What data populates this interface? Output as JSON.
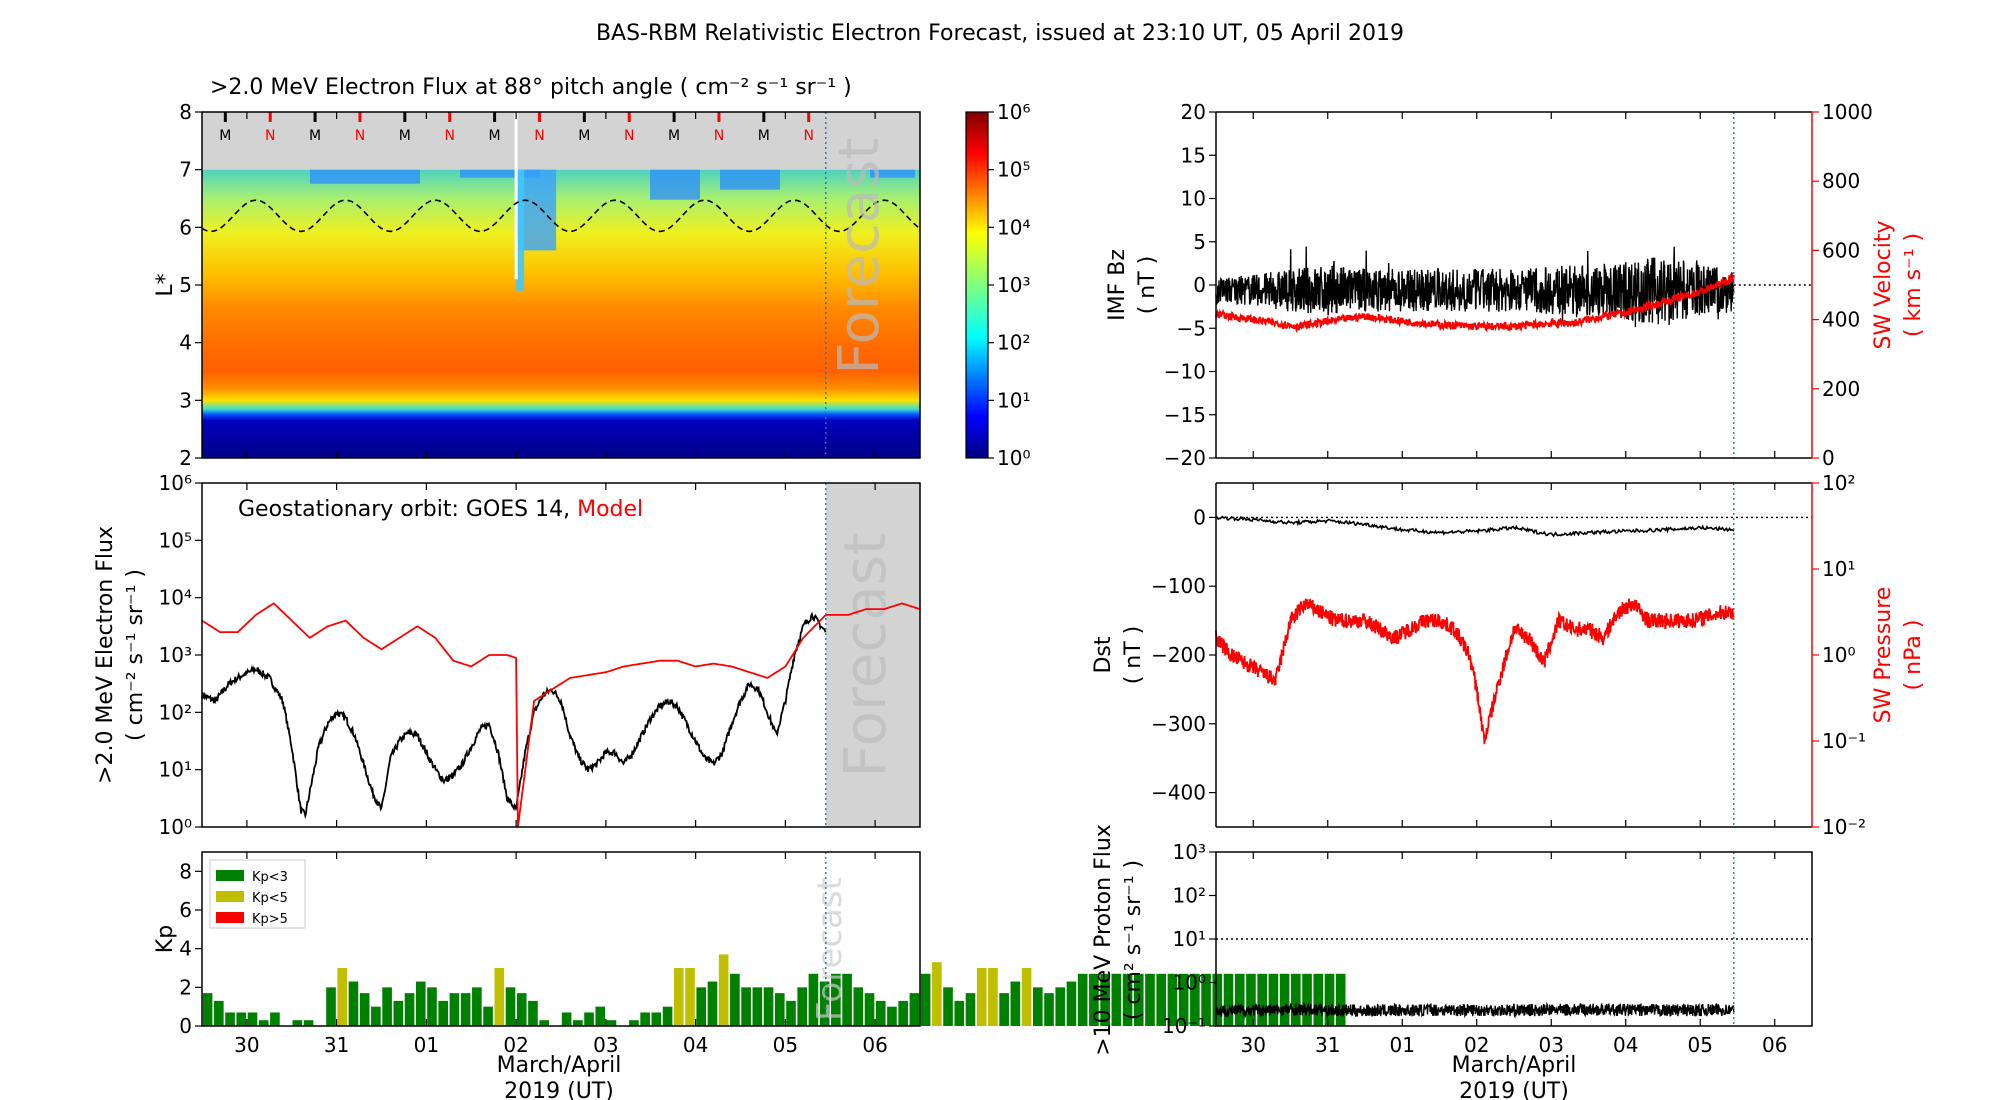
{
  "title": "BAS-RBM Relativistic Electron Forecast, issued at 23:10 UT, 05 April 2019",
  "x_axis": {
    "ticks": [
      "30",
      "31",
      "01",
      "02",
      "03",
      "04",
      "05",
      "06"
    ],
    "label_line1": "March/April",
    "label_line2": "2019 (UT)"
  },
  "colors": {
    "forecast_line": "#1f77b4",
    "kp_low": "#008000",
    "kp_mid": "#bfbf00",
    "kp_high": "#ff0000",
    "model": "#ff0000",
    "obs": "#000000"
  },
  "chart_data": [
    {
      "id": "lstar_flux_map",
      "type": "heatmap",
      "title": ">2.0 MeV Electron Flux at 88° pitch angle ( cm⁻² s⁻¹ sr⁻¹ )",
      "ylabel": "L*",
      "yticks": [
        "2",
        "3",
        "4",
        "5",
        "6",
        "7",
        "8"
      ],
      "ylim": [
        2,
        8
      ],
      "xlim_days": [
        -0.5,
        7.5
      ],
      "forecast_start_day": 6.45,
      "forecast_watermark": "Forecast",
      "colorbar": {
        "scale": "log",
        "ticks": [
          "10⁰",
          "10¹",
          "10²",
          "10³",
          "10⁴",
          "10⁵",
          "10⁶"
        ],
        "range": [
          0,
          6
        ]
      },
      "noon_midnight_markers": [
        "M",
        "N",
        "M",
        "N",
        "M",
        "N",
        "M",
        "N",
        "M",
        "N",
        "M",
        "N",
        "M",
        "N"
      ],
      "mlt_dashed_line": {
        "mean_L": 6.2,
        "amplitude": 0.27,
        "period_days": 1
      },
      "injection_day": 3.0
    },
    {
      "id": "geo_electron_flux",
      "type": "line",
      "annotation_prefix": "Geostationary orbit:   GOES 14,",
      "annotation_model": "Model",
      "ylabel_line1": ">2.0 MeV Electron Flux",
      "ylabel_line2": "( cm⁻² s⁻¹ sr⁻¹ )",
      "yscale": "log",
      "yticks": [
        "10⁰",
        "10¹",
        "10²",
        "10³",
        "10⁴",
        "10⁵",
        "10⁶"
      ],
      "ylim_log": [
        0,
        6
      ],
      "forecast_watermark": "Forecast",
      "series": [
        {
          "name": "GOES 14",
          "color": "#000000",
          "x": [
            -0.5,
            -0.35,
            -0.2,
            -0.05,
            0.1,
            0.25,
            0.4,
            0.5,
            0.6,
            0.65,
            0.7,
            0.8,
            0.9,
            1.0,
            1.1,
            1.2,
            1.3,
            1.4,
            1.5,
            1.6,
            1.7,
            1.8,
            1.9,
            2.0,
            2.1,
            2.2,
            2.3,
            2.4,
            2.5,
            2.6,
            2.7,
            2.8,
            2.9,
            3.0,
            3.1,
            3.2,
            3.3,
            3.4,
            3.5,
            3.6,
            3.7,
            3.8,
            3.9,
            4.0,
            4.1,
            4.2,
            4.3,
            4.4,
            4.5,
            4.6,
            4.7,
            4.8,
            4.9,
            5.0,
            5.1,
            5.2,
            5.3,
            5.4,
            5.5,
            5.6,
            5.7,
            5.8,
            5.9,
            6.0,
            6.1,
            6.2,
            6.3,
            6.45
          ],
          "log_y": [
            2.3,
            2.2,
            2.5,
            2.65,
            2.75,
            2.6,
            2.2,
            1.4,
            0.3,
            0.2,
            0.6,
            1.4,
            1.8,
            2.0,
            1.9,
            1.6,
            1.1,
            0.6,
            0.3,
            1.2,
            1.5,
            1.65,
            1.6,
            1.3,
            1.0,
            0.8,
            0.9,
            1.1,
            1.4,
            1.7,
            1.8,
            1.3,
            0.5,
            0.3,
            1.3,
            2.0,
            2.3,
            2.4,
            2.2,
            1.6,
            1.2,
            1.0,
            1.1,
            1.3,
            1.3,
            1.1,
            1.3,
            1.6,
            1.9,
            2.1,
            2.2,
            2.1,
            1.8,
            1.5,
            1.2,
            1.1,
            1.3,
            1.8,
            2.2,
            2.5,
            2.4,
            2.0,
            1.6,
            2.2,
            3.0,
            3.5,
            3.7,
            3.4
          ]
        },
        {
          "name": "Model",
          "color": "#ff0000",
          "x": [
            -0.5,
            -0.3,
            -0.1,
            0.1,
            0.3,
            0.5,
            0.7,
            0.9,
            1.1,
            1.3,
            1.5,
            1.7,
            1.9,
            2.1,
            2.3,
            2.5,
            2.7,
            2.9,
            3.0,
            3.02,
            3.2,
            3.4,
            3.6,
            3.8,
            4.0,
            4.2,
            4.4,
            4.6,
            4.8,
            5.0,
            5.2,
            5.4,
            5.6,
            5.8,
            6.0,
            6.2,
            6.45,
            6.7,
            6.9,
            7.1,
            7.3,
            7.5
          ],
          "log_y": [
            3.6,
            3.4,
            3.4,
            3.7,
            3.9,
            3.6,
            3.3,
            3.5,
            3.6,
            3.3,
            3.1,
            3.3,
            3.5,
            3.3,
            2.9,
            2.8,
            3.0,
            3.0,
            2.95,
            0.0,
            2.2,
            2.4,
            2.6,
            2.65,
            2.7,
            2.8,
            2.85,
            2.9,
            2.9,
            2.8,
            2.85,
            2.8,
            2.7,
            2.6,
            2.8,
            3.3,
            3.7,
            3.7,
            3.8,
            3.8,
            3.9,
            3.8
          ]
        }
      ]
    },
    {
      "id": "kp_index",
      "type": "bar",
      "ylabel": "Kp",
      "yticks": [
        "0",
        "2",
        "4",
        "6",
        "8"
      ],
      "ylim": [
        0,
        9
      ],
      "bar_width_days": 0.125,
      "forecast_watermark": "Forecast",
      "legend": [
        {
          "label": "Kp<3",
          "color": "#008000"
        },
        {
          "label": "Kp<5",
          "color": "#bfbf00"
        },
        {
          "label": "Kp>5",
          "color": "#ff0000"
        }
      ],
      "values": [
        1.7,
        1.3,
        0.7,
        0.7,
        0.7,
        0.3,
        0.7,
        0.0,
        0.3,
        0.3,
        0.0,
        2.0,
        3.0,
        2.3,
        1.7,
        1.0,
        2.0,
        1.3,
        1.7,
        2.3,
        2.0,
        1.3,
        1.7,
        1.7,
        2.0,
        1.0,
        3.0,
        2.0,
        1.7,
        1.3,
        0.3,
        0.0,
        0.7,
        0.3,
        0.7,
        1.0,
        0.3,
        0.0,
        0.3,
        0.7,
        0.7,
        1.0,
        3.0,
        3.0,
        2.0,
        2.3,
        3.7,
        2.7,
        2.0,
        2.0,
        2.0,
        1.7,
        1.3,
        2.0,
        2.7,
        2.3,
        2.7,
        2.7,
        2.0,
        1.7,
        1.3,
        1.0,
        1.3,
        1.7,
        2.7,
        3.3,
        2.0,
        1.3,
        1.7,
        3.0,
        3.0,
        1.7,
        2.3,
        3.0,
        2.0,
        1.7,
        2.0,
        2.3,
        2.7,
        2.7,
        2.7,
        2.7,
        2.7,
        2.7,
        2.7,
        2.7,
        2.7,
        2.7,
        2.7,
        2.7,
        2.7,
        2.7,
        2.7,
        2.7,
        2.7,
        2.7,
        2.7,
        2.7,
        2.7,
        2.7,
        2.7,
        2.7
      ]
    },
    {
      "id": "imf_sw_velocity",
      "type": "line",
      "ylabel_left_line1": "IMF Bz",
      "ylabel_left_line2": "( nT )",
      "yticks_left": [
        "−20",
        "−15",
        "−10",
        "−5",
        "0",
        "5",
        "10",
        "15",
        "20"
      ],
      "ylim_left": [
        -20,
        20
      ],
      "ylabel_right_line1": "SW Velocity",
      "ylabel_right_line2": "( km s⁻¹ )",
      "yticks_right": [
        "0",
        "200",
        "400",
        "600",
        "800",
        "1000"
      ],
      "ylim_right": [
        0,
        1000
      ],
      "series": [
        {
          "name": "IMF Bz",
          "color": "#000000",
          "x": [
            -0.5,
            0.0,
            0.5,
            1.0,
            1.5,
            2.0,
            2.5,
            3.0,
            3.5,
            4.0,
            4.5,
            5.0,
            5.5,
            6.0,
            6.45
          ],
          "amplitude": [
            1.5,
            1.8,
            2.5,
            3.0,
            2.5,
            2.5,
            2.5,
            2.5,
            2.5,
            2.8,
            3.0,
            3.5,
            4.0,
            3.0,
            2.5
          ]
        },
        {
          "name": "SW Velocity",
          "color": "#ff0000",
          "x": [
            -0.5,
            0.0,
            0.3,
            0.6,
            1.0,
            1.5,
            2.0,
            2.5,
            3.0,
            3.5,
            4.0,
            4.3,
            4.6,
            5.0,
            5.5,
            6.0,
            6.45
          ],
          "y": [
            415,
            400,
            390,
            380,
            395,
            410,
            395,
            385,
            380,
            380,
            390,
            390,
            405,
            420,
            450,
            480,
            520
          ]
        }
      ]
    },
    {
      "id": "dst_sw_pressure",
      "type": "line",
      "ylabel_left_line1": "Dst",
      "ylabel_left_line2": "( nT )",
      "yticks_left": [
        "0",
        "−100",
        "−200",
        "−300",
        "−400"
      ],
      "ylim_left": [
        -450,
        50
      ],
      "ylabel_right_line1": "SW Pressure",
      "ylabel_right_line2": "( nPa )",
      "yticks_right": [
        "10⁻²",
        "10⁻¹",
        "10⁰",
        "10¹",
        "10²"
      ],
      "ylim_right_log": [
        -2,
        2
      ],
      "series": [
        {
          "name": "Dst",
          "color": "#000000",
          "x": [
            -0.5,
            0.0,
            0.5,
            1.0,
            1.5,
            2.0,
            2.5,
            3.0,
            3.5,
            4.0,
            4.5,
            5.0,
            5.5,
            6.0,
            6.45
          ],
          "y": [
            0,
            -3,
            -8,
            -5,
            -10,
            -18,
            -22,
            -20,
            -15,
            -25,
            -22,
            -20,
            -18,
            -15,
            -18
          ]
        },
        {
          "name": "SW Pressure",
          "color": "#ff0000",
          "x": [
            -0.5,
            -0.3,
            -0.1,
            0.1,
            0.3,
            0.5,
            0.7,
            0.9,
            1.1,
            1.3,
            1.5,
            1.7,
            1.9,
            2.1,
            2.3,
            2.5,
            2.7,
            2.9,
            3.0,
            3.1,
            3.3,
            3.5,
            3.7,
            3.9,
            4.1,
            4.3,
            4.5,
            4.7,
            4.9,
            5.1,
            5.3,
            5.5,
            5.7,
            5.9,
            6.1,
            6.3,
            6.45
          ],
          "log_y": [
            0.2,
            0.0,
            -0.1,
            -0.2,
            -0.3,
            0.4,
            0.6,
            0.5,
            0.4,
            0.4,
            0.4,
            0.3,
            0.2,
            0.3,
            0.4,
            0.4,
            0.3,
            0.0,
            -0.4,
            -1.0,
            -0.3,
            0.3,
            0.2,
            -0.1,
            0.4,
            0.3,
            0.3,
            0.2,
            0.5,
            0.6,
            0.4,
            0.4,
            0.4,
            0.4,
            0.45,
            0.5,
            0.5
          ]
        }
      ]
    },
    {
      "id": "proton_flux",
      "type": "line",
      "ylabel_line1": ">10 MeV Proton Flux",
      "ylabel_line2": "( cm² s⁻¹ sr⁻¹ )",
      "yscale": "log",
      "yticks": [
        "10⁻¹",
        "10⁰",
        "10¹",
        "10²",
        "10³"
      ],
      "ylim_log": [
        -1,
        3
      ],
      "threshold_log": 1,
      "series": [
        {
          "name": "proton",
          "color": "#000000",
          "x": [
            -0.5,
            0.5,
            1.5,
            2.5,
            3.5,
            4.5,
            5.5,
            6.45
          ],
          "log_y": [
            -0.65,
            -0.62,
            -0.65,
            -0.63,
            -0.64,
            -0.62,
            -0.64,
            -0.63
          ]
        }
      ]
    }
  ]
}
